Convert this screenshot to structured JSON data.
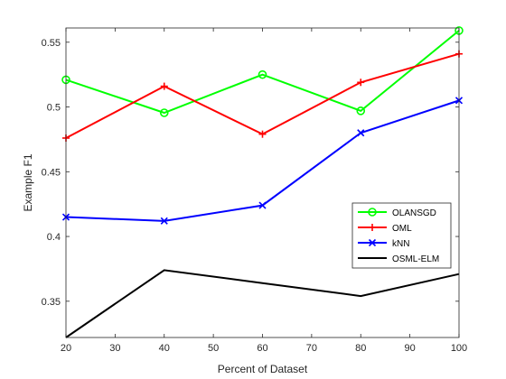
{
  "chart_data": {
    "type": "line",
    "title": "",
    "xlabel": "Percent of Dataset",
    "ylabel": "Example F1",
    "xlim": [
      20,
      100
    ],
    "ylim": [
      0.322,
      0.561
    ],
    "xticks": [
      20,
      30,
      40,
      50,
      60,
      70,
      80,
      90,
      100
    ],
    "yticks": [
      0.35,
      0.4,
      0.45,
      0.5,
      0.55
    ],
    "ytick_labels": [
      "0.35",
      "0.4",
      "0.45",
      "0.5",
      "0.55"
    ],
    "grid": false,
    "legend_position": "right",
    "x": [
      20,
      40,
      60,
      80,
      100
    ],
    "series": [
      {
        "name": "OLANSGD",
        "color": "#00ff00",
        "marker": "circle",
        "values": [
          0.521,
          0.4955,
          0.525,
          0.497,
          0.559
        ]
      },
      {
        "name": "OML",
        "color": "#ff0000",
        "marker": "plus",
        "values": [
          0.476,
          0.516,
          0.479,
          0.519,
          0.541
        ]
      },
      {
        "name": "kNN",
        "color": "#0000ff",
        "marker": "x",
        "values": [
          0.415,
          0.412,
          0.424,
          0.48,
          0.505
        ]
      },
      {
        "name": "OSML-ELM",
        "color": "#000000",
        "marker": "none",
        "values": [
          0.322,
          0.374,
          0.364,
          0.354,
          0.371
        ]
      }
    ]
  }
}
